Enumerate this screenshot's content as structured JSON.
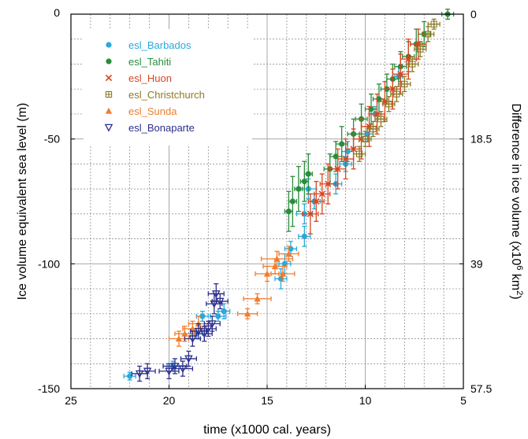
{
  "chart_data": {
    "type": "scatter",
    "title": "",
    "xlabel": "time (x1000 cal. years)",
    "ylabel": "Ice volume equivalent sea level (m)",
    "y2label_parts": [
      "Difference in ice volume (x10",
      "6",
      " km",
      "2",
      ")"
    ],
    "xlim": [
      25,
      5
    ],
    "x_reversed": true,
    "ylim": [
      -150,
      0
    ],
    "x_ticks": [
      25,
      20,
      15,
      10,
      5
    ],
    "y_ticks": [
      0,
      -50,
      -100,
      -150
    ],
    "y2_ticks": [
      {
        "at": 0,
        "label": "0"
      },
      {
        "at": -50,
        "label": "18.5"
      },
      {
        "at": -100,
        "label": "39"
      },
      {
        "at": -150,
        "label": "57.5"
      }
    ],
    "grid": true,
    "grid_minor": true,
    "legend_position": "top-left",
    "series": [
      {
        "name": "esl_Barbados",
        "marker": "circle",
        "color": "#29a9dc",
        "points": [
          [
            22.0,
            -145,
            0.3,
            1.5
          ],
          [
            19.8,
            -141,
            0.3,
            2
          ],
          [
            18.6,
            -128,
            0.3,
            2
          ],
          [
            18.3,
            -121,
            0.3,
            2
          ],
          [
            17.5,
            -121,
            0.4,
            2
          ],
          [
            17.2,
            -119,
            0.3,
            3
          ],
          [
            14.3,
            -106,
            0.3,
            4
          ],
          [
            14.1,
            -100,
            0.3,
            4
          ],
          [
            13.8,
            -94,
            0.3,
            3
          ],
          [
            13.1,
            -89,
            0.3,
            4
          ],
          [
            13.1,
            -80,
            0.4,
            4
          ],
          [
            12.9,
            -70,
            0.4,
            4
          ],
          [
            12.6,
            -75,
            0.3,
            3
          ],
          [
            11.5,
            -68,
            0.3,
            4
          ],
          [
            11.0,
            -60,
            0.3,
            3
          ],
          [
            10.9,
            -55,
            0.3,
            4
          ],
          [
            9.9,
            -48,
            0.3,
            3
          ],
          [
            9.5,
            -40,
            0.3,
            3
          ],
          [
            8.3,
            -25,
            0.2,
            4
          ]
        ]
      },
      {
        "name": "esl_Tahiti",
        "marker": "circle",
        "color": "#2a8c3c",
        "points": [
          [
            13.9,
            -79,
            0.2,
            8
          ],
          [
            13.7,
            -75,
            0.2,
            10
          ],
          [
            13.4,
            -70,
            0.2,
            9
          ],
          [
            13.1,
            -67,
            0.2,
            8
          ],
          [
            12.9,
            -64,
            0.2,
            8
          ],
          [
            11.8,
            -62,
            0.3,
            6
          ],
          [
            11.5,
            -57,
            0.3,
            6
          ],
          [
            11.2,
            -52,
            0.3,
            7
          ],
          [
            10.6,
            -48,
            0.3,
            6
          ],
          [
            10.2,
            -42,
            0.3,
            6
          ],
          [
            9.7,
            -38,
            0.3,
            6
          ],
          [
            9.3,
            -34,
            0.3,
            6
          ],
          [
            8.9,
            -30,
            0.3,
            6
          ],
          [
            8.6,
            -26,
            0.3,
            6
          ],
          [
            8.2,
            -21,
            0.3,
            6
          ],
          [
            7.8,
            -17,
            0.3,
            6
          ],
          [
            7.4,
            -12,
            0.3,
            6
          ],
          [
            7.0,
            -8,
            0.3,
            5
          ],
          [
            5.8,
            0,
            0.3,
            2
          ]
        ]
      },
      {
        "name": "esl_Huon",
        "marker": "x",
        "color": "#d9441f",
        "points": [
          [
            12.8,
            -80,
            0.4,
            8
          ],
          [
            12.5,
            -75,
            0.4,
            8
          ],
          [
            12.2,
            -72,
            0.4,
            8
          ],
          [
            11.9,
            -68,
            0.4,
            8
          ],
          [
            11.4,
            -62,
            0.4,
            8
          ],
          [
            11.0,
            -58,
            0.4,
            8
          ],
          [
            10.6,
            -54,
            0.4,
            8
          ],
          [
            10.2,
            -50,
            0.4,
            8
          ],
          [
            9.8,
            -45,
            0.4,
            8
          ],
          [
            9.4,
            -40,
            0.4,
            8
          ],
          [
            9.0,
            -35,
            0.4,
            8
          ],
          [
            8.6,
            -30,
            0.4,
            8
          ],
          [
            8.2,
            -24,
            0.4,
            8
          ],
          [
            7.8,
            -18,
            0.4,
            8
          ],
          [
            7.3,
            -12,
            0.4,
            6
          ]
        ]
      },
      {
        "name": "esl_Christchurch",
        "marker": "boxplus",
        "color": "#8b7a22",
        "points": [
          [
            10.3,
            -56,
            0.3,
            3
          ],
          [
            10.0,
            -50,
            0.3,
            3
          ],
          [
            9.6,
            -46,
            0.3,
            3
          ],
          [
            9.2,
            -42,
            0.3,
            3
          ],
          [
            8.8,
            -36,
            0.3,
            3
          ],
          [
            8.4,
            -32,
            0.3,
            3
          ],
          [
            8.0,
            -28,
            0.3,
            3
          ],
          [
            7.6,
            -20,
            0.3,
            3
          ],
          [
            7.2,
            -14,
            0.3,
            3
          ],
          [
            6.8,
            -8,
            0.3,
            3
          ],
          [
            6.5,
            -4,
            0.3,
            2
          ]
        ]
      },
      {
        "name": "esl_Sunda",
        "marker": "triangle",
        "color": "#f07d2c",
        "points": [
          [
            19.5,
            -130,
            0.5,
            3
          ],
          [
            19.2,
            -128,
            0.5,
            3
          ],
          [
            18.8,
            -126,
            0.5,
            3
          ],
          [
            18.5,
            -124,
            0.5,
            3
          ],
          [
            16.0,
            -120,
            0.5,
            2
          ],
          [
            15.5,
            -114,
            0.7,
            2
          ],
          [
            15.0,
            -104,
            0.6,
            3
          ],
          [
            14.6,
            -101,
            0.6,
            3
          ],
          [
            14.5,
            -98,
            0.8,
            3
          ],
          [
            14.2,
            -104,
            0.6,
            3
          ],
          [
            13.9,
            -96,
            0.5,
            3
          ]
        ]
      },
      {
        "name": "esl_Bonaparte",
        "marker": "triangle-down",
        "color": "#2c2e8c",
        "points": [
          [
            21.5,
            -144,
            0.4,
            3
          ],
          [
            21.1,
            -143,
            0.4,
            3
          ],
          [
            20.0,
            -143,
            0.5,
            3
          ],
          [
            19.7,
            -141,
            0.6,
            3
          ],
          [
            19.3,
            -142,
            0.5,
            3
          ],
          [
            19.0,
            -138,
            0.4,
            3
          ],
          [
            18.8,
            -130,
            0.4,
            3
          ],
          [
            18.5,
            -127,
            0.4,
            3
          ],
          [
            18.2,
            -128,
            0.4,
            3
          ],
          [
            18.0,
            -126,
            0.4,
            3
          ],
          [
            17.8,
            -124,
            0.4,
            3
          ],
          [
            17.7,
            -116,
            0.4,
            4
          ],
          [
            17.6,
            -112,
            0.4,
            4
          ],
          [
            17.4,
            -115,
            0.4,
            3
          ]
        ]
      }
    ]
  }
}
